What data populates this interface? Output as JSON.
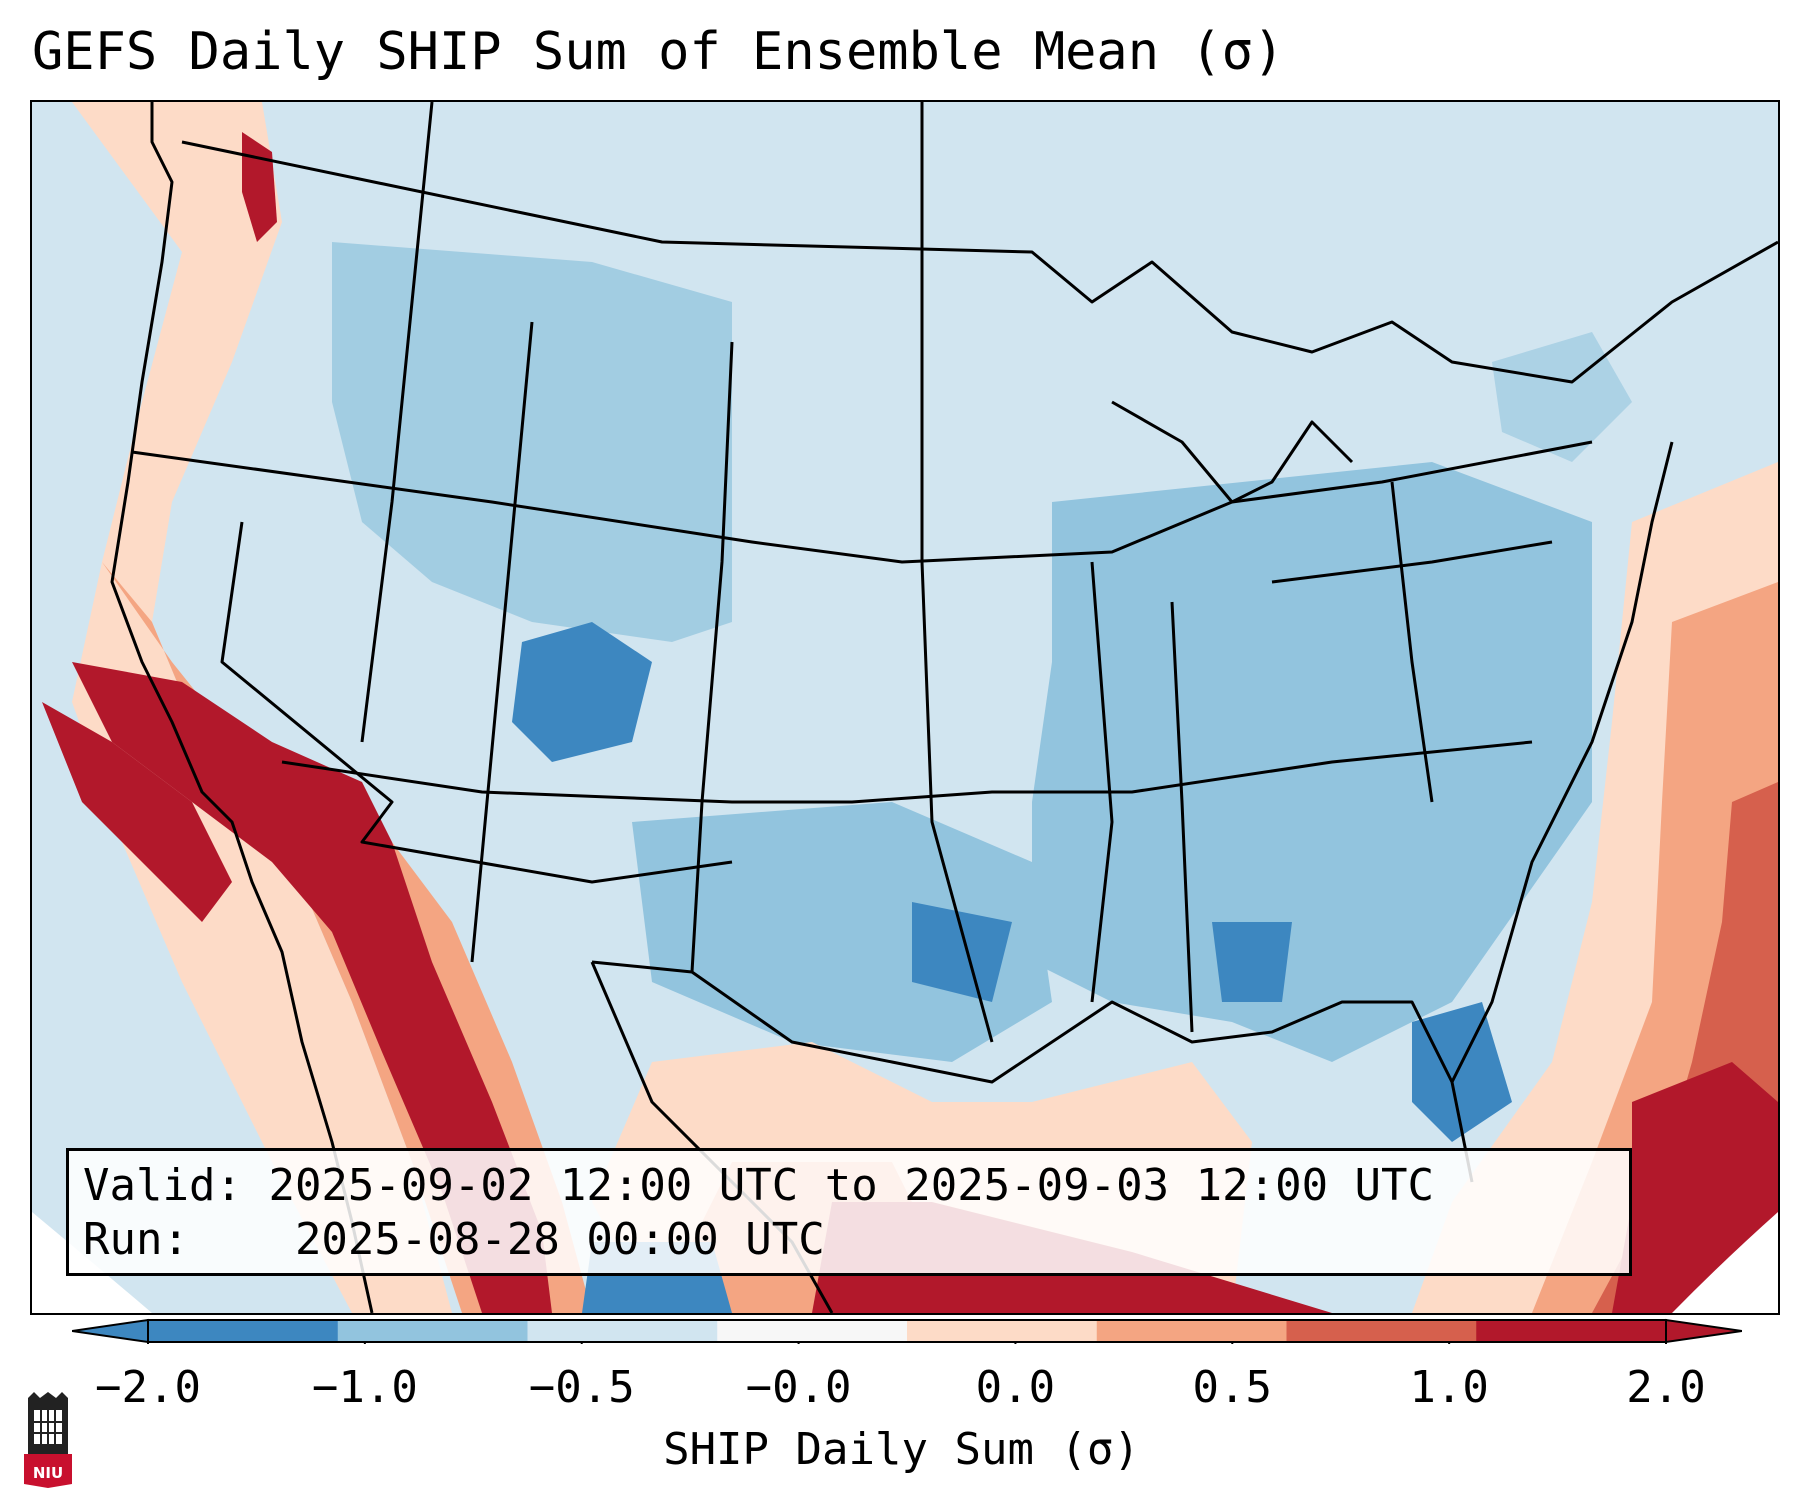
{
  "title": "GEFS Daily SHIP Sum of Ensemble Mean (σ)",
  "info": {
    "valid_label": "Valid:",
    "valid_value": "2025-09-02 12:00 UTC to 2025-09-03 12:00 UTC",
    "run_label": "Run:",
    "run_value": "2025-08-28 00:00 UTC"
  },
  "colorbar": {
    "label": "SHIP Daily Sum (σ)",
    "ticks": [
      "−2.0",
      "−1.0",
      "−0.5",
      "−0.0",
      "0.0",
      "0.5",
      "1.0",
      "2.0"
    ],
    "colors": [
      "#3d87c0",
      "#92c4de",
      "#d1e5f0",
      "#f7f7f7",
      "#fddbc7",
      "#f4a582",
      "#d6604d",
      "#b2182b"
    ],
    "extend": "both"
  },
  "logo": {
    "text": "NIU"
  }
}
